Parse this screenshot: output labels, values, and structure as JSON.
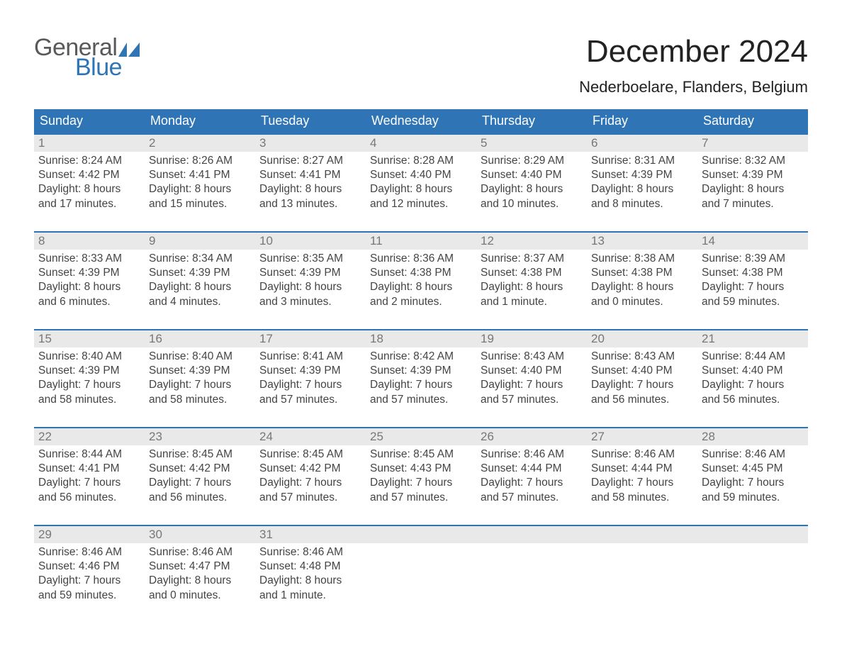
{
  "logo": {
    "text_general": "General",
    "text_blue": "Blue"
  },
  "title": {
    "month": "December 2024",
    "location": "Nederboelare, Flanders, Belgium"
  },
  "colors": {
    "header_blue": "#2f75b5",
    "daynum_bg": "#e9e9e9",
    "row_rule": "#2f75b5",
    "text": "#444444",
    "title": "#222222",
    "logo_gray": "#595959",
    "logo_blue": "#2f75b5"
  },
  "weekdays": [
    "Sunday",
    "Monday",
    "Tuesday",
    "Wednesday",
    "Thursday",
    "Friday",
    "Saturday"
  ],
  "weeks": [
    [
      {
        "n": "1",
        "sunrise": "Sunrise: 8:24 AM",
        "sunset": "Sunset: 4:42 PM",
        "day1": "Daylight: 8 hours",
        "day2": "and 17 minutes."
      },
      {
        "n": "2",
        "sunrise": "Sunrise: 8:26 AM",
        "sunset": "Sunset: 4:41 PM",
        "day1": "Daylight: 8 hours",
        "day2": "and 15 minutes."
      },
      {
        "n": "3",
        "sunrise": "Sunrise: 8:27 AM",
        "sunset": "Sunset: 4:41 PM",
        "day1": "Daylight: 8 hours",
        "day2": "and 13 minutes."
      },
      {
        "n": "4",
        "sunrise": "Sunrise: 8:28 AM",
        "sunset": "Sunset: 4:40 PM",
        "day1": "Daylight: 8 hours",
        "day2": "and 12 minutes."
      },
      {
        "n": "5",
        "sunrise": "Sunrise: 8:29 AM",
        "sunset": "Sunset: 4:40 PM",
        "day1": "Daylight: 8 hours",
        "day2": "and 10 minutes."
      },
      {
        "n": "6",
        "sunrise": "Sunrise: 8:31 AM",
        "sunset": "Sunset: 4:39 PM",
        "day1": "Daylight: 8 hours",
        "day2": "and 8 minutes."
      },
      {
        "n": "7",
        "sunrise": "Sunrise: 8:32 AM",
        "sunset": "Sunset: 4:39 PM",
        "day1": "Daylight: 8 hours",
        "day2": "and 7 minutes."
      }
    ],
    [
      {
        "n": "8",
        "sunrise": "Sunrise: 8:33 AM",
        "sunset": "Sunset: 4:39 PM",
        "day1": "Daylight: 8 hours",
        "day2": "and 6 minutes."
      },
      {
        "n": "9",
        "sunrise": "Sunrise: 8:34 AM",
        "sunset": "Sunset: 4:39 PM",
        "day1": "Daylight: 8 hours",
        "day2": "and 4 minutes."
      },
      {
        "n": "10",
        "sunrise": "Sunrise: 8:35 AM",
        "sunset": "Sunset: 4:39 PM",
        "day1": "Daylight: 8 hours",
        "day2": "and 3 minutes."
      },
      {
        "n": "11",
        "sunrise": "Sunrise: 8:36 AM",
        "sunset": "Sunset: 4:38 PM",
        "day1": "Daylight: 8 hours",
        "day2": "and 2 minutes."
      },
      {
        "n": "12",
        "sunrise": "Sunrise: 8:37 AM",
        "sunset": "Sunset: 4:38 PM",
        "day1": "Daylight: 8 hours",
        "day2": "and 1 minute."
      },
      {
        "n": "13",
        "sunrise": "Sunrise: 8:38 AM",
        "sunset": "Sunset: 4:38 PM",
        "day1": "Daylight: 8 hours",
        "day2": "and 0 minutes."
      },
      {
        "n": "14",
        "sunrise": "Sunrise: 8:39 AM",
        "sunset": "Sunset: 4:38 PM",
        "day1": "Daylight: 7 hours",
        "day2": "and 59 minutes."
      }
    ],
    [
      {
        "n": "15",
        "sunrise": "Sunrise: 8:40 AM",
        "sunset": "Sunset: 4:39 PM",
        "day1": "Daylight: 7 hours",
        "day2": "and 58 minutes."
      },
      {
        "n": "16",
        "sunrise": "Sunrise: 8:40 AM",
        "sunset": "Sunset: 4:39 PM",
        "day1": "Daylight: 7 hours",
        "day2": "and 58 minutes."
      },
      {
        "n": "17",
        "sunrise": "Sunrise: 8:41 AM",
        "sunset": "Sunset: 4:39 PM",
        "day1": "Daylight: 7 hours",
        "day2": "and 57 minutes."
      },
      {
        "n": "18",
        "sunrise": "Sunrise: 8:42 AM",
        "sunset": "Sunset: 4:39 PM",
        "day1": "Daylight: 7 hours",
        "day2": "and 57 minutes."
      },
      {
        "n": "19",
        "sunrise": "Sunrise: 8:43 AM",
        "sunset": "Sunset: 4:40 PM",
        "day1": "Daylight: 7 hours",
        "day2": "and 57 minutes."
      },
      {
        "n": "20",
        "sunrise": "Sunrise: 8:43 AM",
        "sunset": "Sunset: 4:40 PM",
        "day1": "Daylight: 7 hours",
        "day2": "and 56 minutes."
      },
      {
        "n": "21",
        "sunrise": "Sunrise: 8:44 AM",
        "sunset": "Sunset: 4:40 PM",
        "day1": "Daylight: 7 hours",
        "day2": "and 56 minutes."
      }
    ],
    [
      {
        "n": "22",
        "sunrise": "Sunrise: 8:44 AM",
        "sunset": "Sunset: 4:41 PM",
        "day1": "Daylight: 7 hours",
        "day2": "and 56 minutes."
      },
      {
        "n": "23",
        "sunrise": "Sunrise: 8:45 AM",
        "sunset": "Sunset: 4:42 PM",
        "day1": "Daylight: 7 hours",
        "day2": "and 56 minutes."
      },
      {
        "n": "24",
        "sunrise": "Sunrise: 8:45 AM",
        "sunset": "Sunset: 4:42 PM",
        "day1": "Daylight: 7 hours",
        "day2": "and 57 minutes."
      },
      {
        "n": "25",
        "sunrise": "Sunrise: 8:45 AM",
        "sunset": "Sunset: 4:43 PM",
        "day1": "Daylight: 7 hours",
        "day2": "and 57 minutes."
      },
      {
        "n": "26",
        "sunrise": "Sunrise: 8:46 AM",
        "sunset": "Sunset: 4:44 PM",
        "day1": "Daylight: 7 hours",
        "day2": "and 57 minutes."
      },
      {
        "n": "27",
        "sunrise": "Sunrise: 8:46 AM",
        "sunset": "Sunset: 4:44 PM",
        "day1": "Daylight: 7 hours",
        "day2": "and 58 minutes."
      },
      {
        "n": "28",
        "sunrise": "Sunrise: 8:46 AM",
        "sunset": "Sunset: 4:45 PM",
        "day1": "Daylight: 7 hours",
        "day2": "and 59 minutes."
      }
    ],
    [
      {
        "n": "29",
        "sunrise": "Sunrise: 8:46 AM",
        "sunset": "Sunset: 4:46 PM",
        "day1": "Daylight: 7 hours",
        "day2": "and 59 minutes."
      },
      {
        "n": "30",
        "sunrise": "Sunrise: 8:46 AM",
        "sunset": "Sunset: 4:47 PM",
        "day1": "Daylight: 8 hours",
        "day2": "and 0 minutes."
      },
      {
        "n": "31",
        "sunrise": "Sunrise: 8:46 AM",
        "sunset": "Sunset: 4:48 PM",
        "day1": "Daylight: 8 hours",
        "day2": "and 1 minute."
      },
      {
        "empty": true
      },
      {
        "empty": true
      },
      {
        "empty": true
      },
      {
        "empty": true
      }
    ]
  ]
}
